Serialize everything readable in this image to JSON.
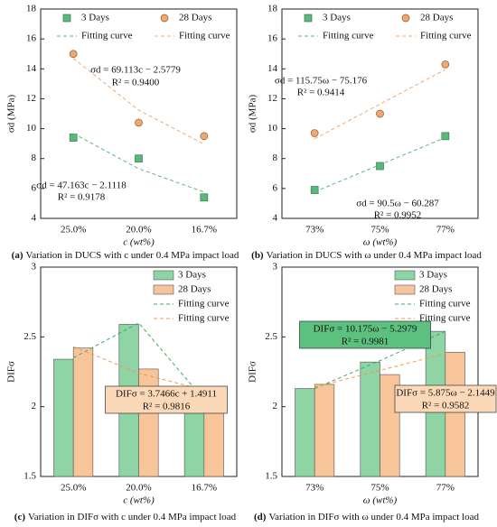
{
  "chart_data": [
    {
      "type": "scatter",
      "panel": "(a)",
      "caption": "Variation in DUCS with c under 0.4 MPa impact load",
      "x_label": "c (wt%)",
      "y_label": "σd (MPa)",
      "categories": [
        "25.0%",
        "20.0%",
        "16.7%"
      ],
      "ylim": [
        4,
        18
      ],
      "yticks": [
        4,
        6,
        8,
        10,
        12,
        14,
        16,
        18
      ],
      "series": [
        {
          "name": "3 Days",
          "color": "#5cb87a",
          "marker": "square",
          "values": [
            9.4,
            8.0,
            5.4
          ]
        },
        {
          "name": "28 Days",
          "color": "#f0a870",
          "marker": "circle",
          "values": [
            15.0,
            10.4,
            9.5
          ]
        },
        {
          "name": "Fitting curve",
          "color": "#5cb87a",
          "style": "dashed",
          "values": [
            9.68,
            7.32,
            5.76
          ]
        },
        {
          "name": "Fitting curve",
          "color": "#f0a870",
          "style": "dashed",
          "values": [
            14.7,
            11.24,
            8.96
          ]
        }
      ],
      "annotations": [
        "σd = 69.113c − 2.5779",
        "R² = 0.9400",
        "σd = 47.163c − 2.1118",
        "R² = 0.9178"
      ]
    },
    {
      "type": "scatter",
      "panel": "(b)",
      "caption": "Variation in DUCS with ω under 0.4 MPa impact load",
      "x_label": "ω (wt%)",
      "y_label": "σd (MPa)",
      "categories": [
        "73%",
        "75%",
        "77%"
      ],
      "ylim": [
        4,
        18
      ],
      "yticks": [
        4,
        6,
        8,
        10,
        12,
        14,
        16,
        18
      ],
      "series": [
        {
          "name": "3 Days",
          "color": "#5cb87a",
          "marker": "square",
          "values": [
            5.9,
            7.5,
            9.5
          ]
        },
        {
          "name": "28 Days",
          "color": "#f0a870",
          "marker": "circle",
          "values": [
            9.7,
            11.0,
            14.3
          ]
        },
        {
          "name": "Fitting curve",
          "color": "#5cb87a",
          "style": "dashed",
          "values": [
            5.78,
            7.59,
            9.4
          ]
        },
        {
          "name": "Fitting curve",
          "color": "#f0a870",
          "style": "dashed",
          "values": [
            9.32,
            11.64,
            13.95
          ]
        }
      ],
      "annotations": [
        "σd = 115.75ω − 75.176",
        "R² = 0.9414",
        "σd = 90.5ω − 60.287",
        "R² = 0.9952"
      ]
    },
    {
      "type": "bar",
      "panel": "(c)",
      "caption": "Variation in DIFσ with c under 0.4 MPa impact load",
      "x_label": "c (wt%)",
      "y_label": "DIFσ",
      "categories": [
        "25.0%",
        "20.0%",
        "16.7%"
      ],
      "ylim": [
        1.5,
        3
      ],
      "yticks": [
        1.5,
        2,
        2.5,
        3
      ],
      "series": [
        {
          "name": "3 Days",
          "color": "#8fd4a4",
          "values": [
            2.34,
            2.59,
            2.07
          ]
        },
        {
          "name": "28 Days",
          "color": "#f8c49a",
          "values": [
            2.42,
            2.27,
            2.11
          ]
        },
        {
          "name": "Fitting curve",
          "color": "#3cae62",
          "style": "dashed",
          "values": [
            2.35,
            2.6,
            2.05
          ]
        },
        {
          "name": "Fitting curve",
          "color": "#f09850",
          "style": "dashed",
          "values": [
            2.43,
            2.24,
            2.12
          ]
        }
      ],
      "annotations": [
        "DIFσ = 3.7466c + 1.4911",
        "R² = 0.9816"
      ]
    },
    {
      "type": "bar",
      "panel": "(d)",
      "caption": "Variation in DIFσ with ω under 0.4 MPa impact load",
      "x_label": "ω (wt%)",
      "y_label": "DIFσ",
      "categories": [
        "73%",
        "75%",
        "77%"
      ],
      "ylim": [
        1.5,
        3
      ],
      "yticks": [
        1.5,
        2,
        2.5,
        3
      ],
      "series": [
        {
          "name": "3 Days",
          "color": "#8fd4a4",
          "values": [
            2.13,
            2.32,
            2.54
          ]
        },
        {
          "name": "28 Days",
          "color": "#f8c49a",
          "values": [
            2.16,
            2.23,
            2.39
          ]
        },
        {
          "name": "Fitting curve",
          "color": "#3cae62",
          "style": "dashed",
          "values": [
            2.13,
            2.33,
            2.54
          ]
        },
        {
          "name": "Fitting curve",
          "color": "#f09850",
          "style": "dashed",
          "values": [
            2.14,
            2.26,
            2.38
          ]
        }
      ],
      "annotations": [
        "DIFσ = 10.175ω − 5.2979",
        "R² = 0.9981",
        "DIFσ = 5.875ω − 2.1449",
        "R² = 0.9582"
      ]
    }
  ]
}
